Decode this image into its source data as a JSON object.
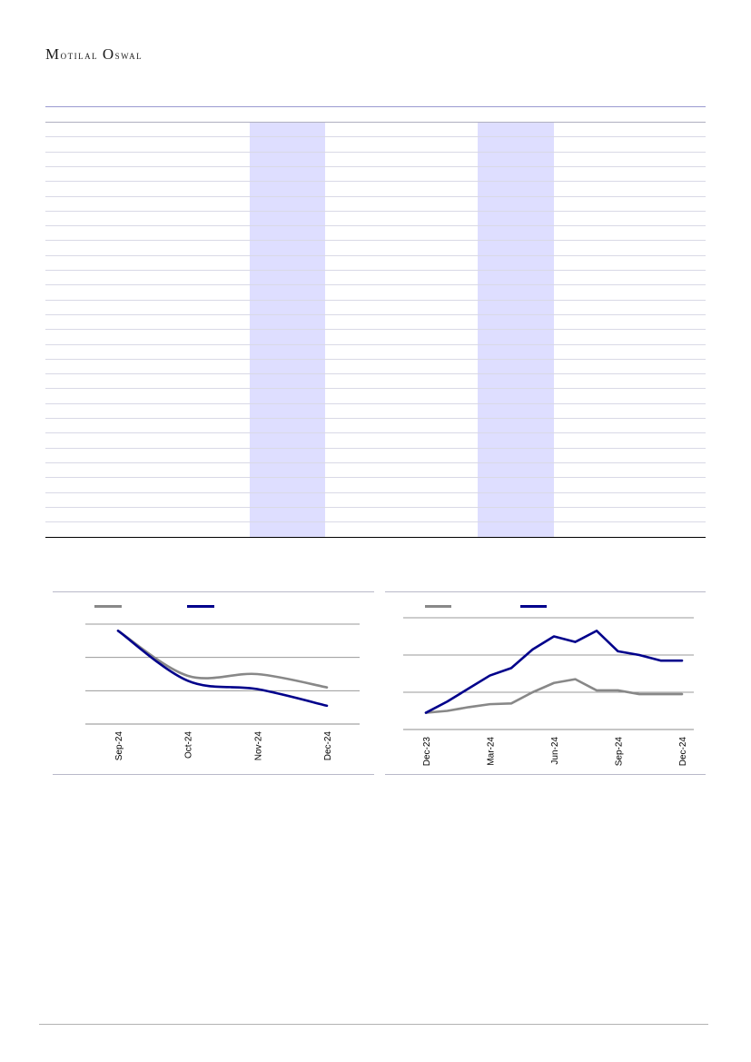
{
  "header": {
    "brand_first_initial": "M",
    "brand_first_rest": "otilal",
    "brand_second_initial": "O",
    "brand_second_rest": "swal"
  },
  "colors": {
    "gray_series": "#888888",
    "navy_series": "#00008b",
    "highlight": "#dedeff"
  },
  "chart_data": [
    {
      "type": "line",
      "x": [
        "Sep-24",
        "Oct-24",
        "Nov-24",
        "Dec-24"
      ],
      "ylim": [
        0,
        3
      ],
      "grid": true,
      "legend": "top-left",
      "series": [
        {
          "color": "gray",
          "values": [
            2.8,
            1.45,
            1.5,
            1.1
          ]
        },
        {
          "color": "navy",
          "values": [
            2.8,
            1.3,
            1.05,
            0.55
          ]
        }
      ]
    },
    {
      "type": "line",
      "x": [
        "Dec-23",
        "Jan-24",
        "Feb-24",
        "Mar-24",
        "Apr-24",
        "May-24",
        "Jun-24",
        "Jul-24",
        "Aug-24",
        "Sep-24",
        "Oct-24",
        "Nov-24",
        "Dec-24"
      ],
      "tick_labels": [
        "Dec-23",
        "Mar-24",
        "Jun-24",
        "Sep-24",
        "Dec-24"
      ],
      "ylim": [
        0,
        3
      ],
      "grid": true,
      "legend": "top-left",
      "series": [
        {
          "color": "gray",
          "values": [
            0.45,
            0.5,
            0.6,
            0.68,
            0.7,
            1.0,
            1.25,
            1.35,
            1.05,
            1.05,
            0.95,
            0.95,
            0.95
          ]
        },
        {
          "color": "navy",
          "values": [
            0.45,
            0.75,
            1.1,
            1.45,
            1.65,
            2.15,
            2.5,
            2.35,
            2.65,
            2.1,
            2.0,
            1.85,
            1.85
          ]
        }
      ]
    }
  ]
}
